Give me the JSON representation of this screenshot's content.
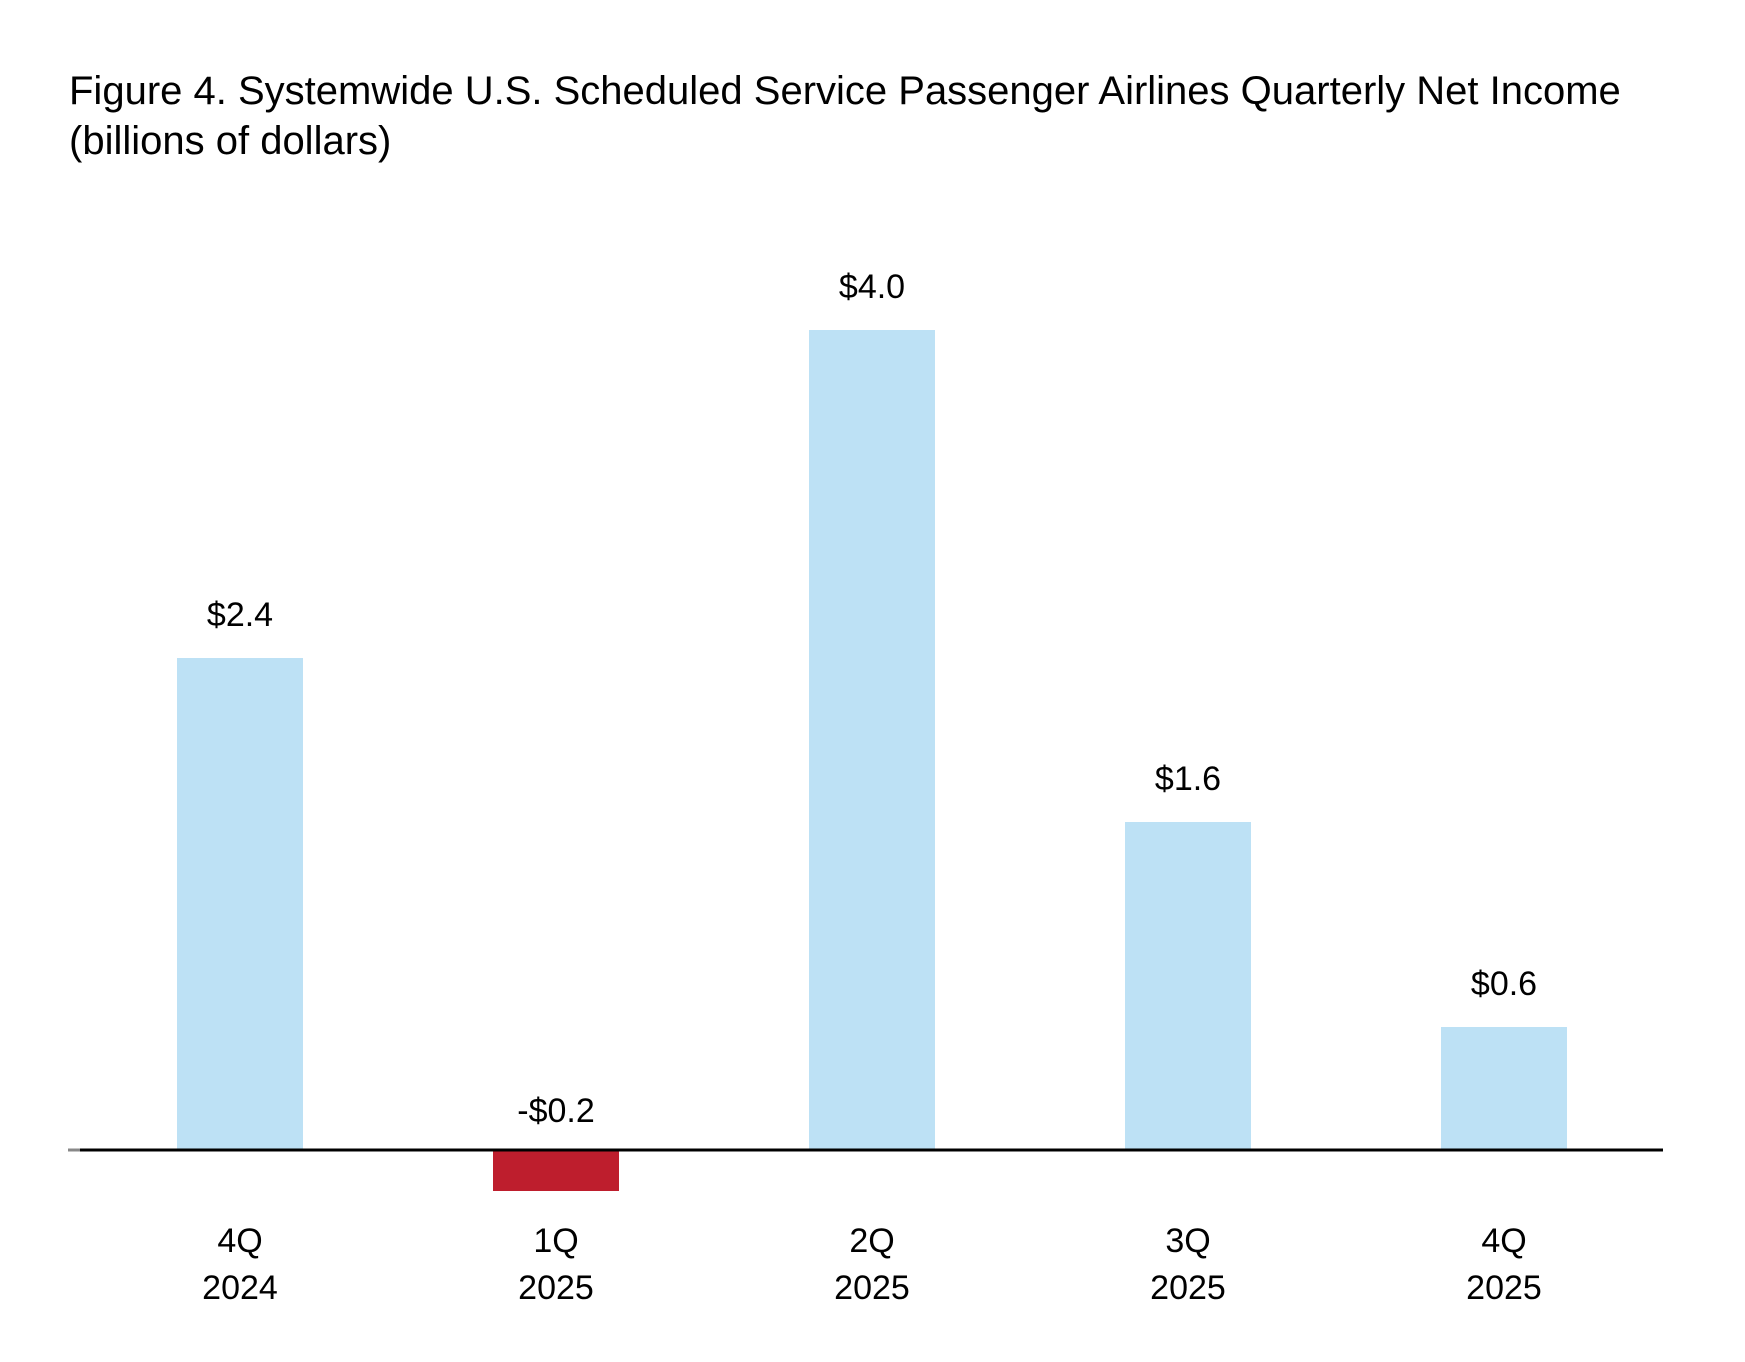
{
  "chart_data": {
    "type": "bar",
    "title": "Figure 4. Systemwide U.S. Scheduled Service Passenger Airlines Quarterly Net Income",
    "subtitle": "(billions of dollars)",
    "categories": [
      [
        "4Q",
        "2024"
      ],
      [
        "1Q",
        "2025"
      ],
      [
        "2Q",
        "2025"
      ],
      [
        "3Q",
        "2025"
      ],
      [
        "4Q",
        "2025"
      ]
    ],
    "values": [
      2.4,
      -0.2,
      4.0,
      1.6,
      0.6
    ],
    "data_labels": [
      "$2.4",
      "-$0.2",
      "$4.0",
      "$1.6",
      "$0.6"
    ],
    "xlabel": "",
    "ylabel": "",
    "ylim": [
      -0.2,
      4.0
    ],
    "grid": false,
    "legend": "none",
    "colors": {
      "positive": "#bde1f5",
      "negative": "#be1e2d",
      "axis": "#000000"
    }
  }
}
